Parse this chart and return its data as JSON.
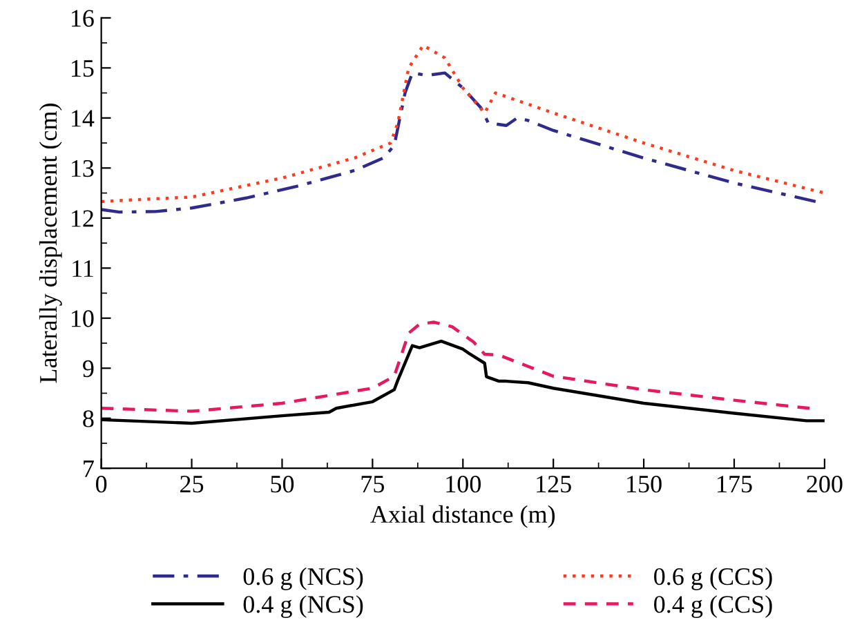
{
  "chart_data": {
    "type": "line",
    "xlabel": "Axial distance (m)",
    "ylabel": "Laterally displacement (cm)",
    "xlim": [
      0,
      200
    ],
    "xticks": [
      0,
      25,
      50,
      75,
      100,
      125,
      150,
      175,
      200
    ],
    "ylim": [
      7,
      16
    ],
    "yticks": [
      7,
      8,
      9,
      10,
      11,
      12,
      13,
      14,
      15,
      16
    ],
    "grid": false,
    "legend": "bottom",
    "marker": "none",
    "series": [
      {
        "name": "0.6 g (NCS)",
        "color": "#2e2a8e",
        "line_style": "dashdot",
        "x": [
          0,
          5,
          15,
          25,
          40,
          55,
          70,
          78,
          81,
          82,
          84,
          86,
          90,
          95,
          100,
          105,
          107,
          112,
          115,
          118,
          125,
          150,
          175,
          200
        ],
        "values": [
          12.17,
          12.12,
          12.13,
          12.2,
          12.4,
          12.65,
          12.95,
          13.2,
          13.45,
          13.8,
          14.5,
          14.9,
          14.85,
          14.9,
          14.6,
          14.2,
          13.9,
          13.85,
          14.0,
          13.95,
          13.75,
          13.2,
          12.7,
          12.29
        ]
      },
      {
        "name": "0.4 g (NCS)",
        "color": "#000000",
        "line_style": "solid",
        "x": [
          0,
          25,
          50,
          63,
          65,
          75,
          81,
          82,
          86,
          88,
          94,
          100,
          102,
          106,
          106.5,
          110,
          112,
          118,
          125,
          150,
          175,
          195,
          200
        ],
        "values": [
          7.97,
          7.9,
          8.05,
          8.12,
          8.2,
          8.33,
          8.57,
          8.76,
          9.45,
          9.41,
          9.54,
          9.38,
          9.28,
          9.1,
          8.83,
          8.74,
          8.74,
          8.71,
          8.6,
          8.3,
          8.1,
          7.95,
          7.95
        ]
      },
      {
        "name": "0.6 g (CCS)",
        "color": "#ff3b1f",
        "line_style": "dotted",
        "x": [
          0,
          5,
          25,
          50,
          70,
          80,
          82,
          85,
          89,
          95,
          100,
          106,
          109,
          125,
          150,
          175,
          200
        ],
        "values": [
          12.33,
          12.35,
          12.42,
          12.8,
          13.2,
          13.5,
          13.9,
          15.0,
          15.45,
          15.2,
          14.6,
          14.1,
          14.5,
          14.1,
          13.5,
          12.95,
          12.5
        ]
      },
      {
        "name": "0.4 g (CCS)",
        "color": "#e8185f",
        "line_style": "dashed",
        "x": [
          0,
          25,
          50,
          75,
          81,
          85,
          88,
          92,
          97,
          103,
          106,
          110,
          125,
          150,
          175,
          197
        ],
        "values": [
          8.2,
          8.14,
          8.3,
          8.6,
          8.84,
          9.7,
          9.88,
          9.92,
          9.83,
          9.52,
          9.28,
          9.26,
          8.84,
          8.57,
          8.36,
          8.19
        ]
      }
    ]
  }
}
